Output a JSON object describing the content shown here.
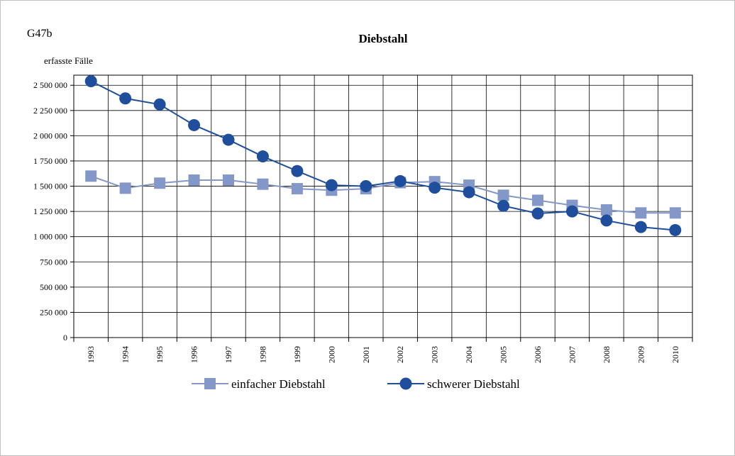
{
  "chart_data": {
    "type": "line",
    "id_label": "G47b",
    "title": "Diebstahl",
    "ylabel": "erfasste Fälle",
    "xlabel": "",
    "categories": [
      "1993",
      "1994",
      "1995",
      "1996",
      "1997",
      "1998",
      "1999",
      "2000",
      "2001",
      "2002",
      "2003",
      "2004",
      "2005",
      "2006",
      "2007",
      "2008",
      "2009",
      "2010"
    ],
    "ylim": [
      0,
      2600000
    ],
    "yticks": [
      0,
      250000,
      500000,
      750000,
      1000000,
      1250000,
      1500000,
      1750000,
      2000000,
      2250000,
      2500000
    ],
    "ytick_labels": [
      "0",
      "250 000",
      "500 000",
      "750 000",
      "1 000 000",
      "1 250 000",
      "1 500 000",
      "1 750 000",
      "2 000 000",
      "2 250 000",
      "2 500 000"
    ],
    "grid": true,
    "legend_position": "bottom",
    "series": [
      {
        "name": "einfacher Diebstahl",
        "marker": "square",
        "color": "#8497c9",
        "values": [
          1600000,
          1480000,
          1530000,
          1560000,
          1560000,
          1520000,
          1475000,
          1460000,
          1475000,
          1535000,
          1545000,
          1510000,
          1410000,
          1360000,
          1310000,
          1265000,
          1235000,
          1235000
        ]
      },
      {
        "name": "schwerer Diebstahl",
        "marker": "circle",
        "color": "#1f4e9c",
        "values": [
          2540000,
          2370000,
          2310000,
          2105000,
          1960000,
          1795000,
          1650000,
          1510000,
          1500000,
          1550000,
          1485000,
          1440000,
          1305000,
          1230000,
          1250000,
          1160000,
          1095000,
          1065000
        ]
      }
    ]
  }
}
